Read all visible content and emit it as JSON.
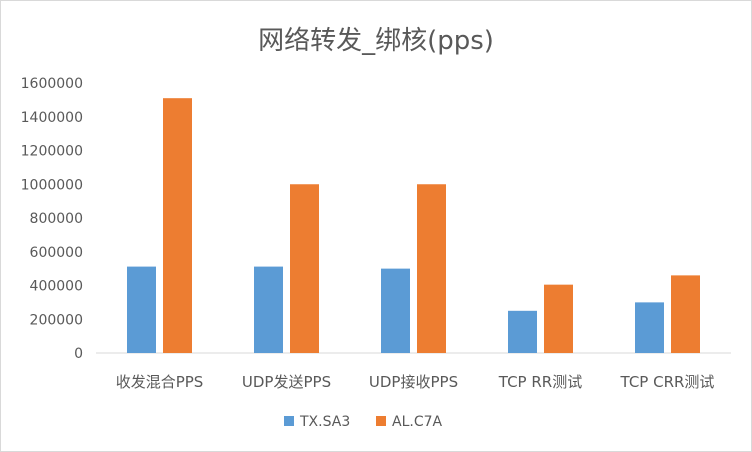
{
  "chart_data": {
    "type": "bar",
    "title": "网络转发_绑核(pps)",
    "xlabel": "",
    "ylabel": "",
    "categories": [
      "收发混合PPS",
      "UDP发送PPS",
      "UDP接收PPS",
      "TCP RR测试",
      "TCP CRR测试"
    ],
    "series": [
      {
        "name": "TX.SA3",
        "color": "#5b9bd5",
        "values": [
          512000,
          512000,
          500000,
          250000,
          300000
        ]
      },
      {
        "name": "AL.C7A",
        "color": "#ed7d31",
        "values": [
          1510000,
          1000000,
          1000000,
          405000,
          460000
        ]
      }
    ],
    "ylim": [
      0,
      1600000
    ],
    "yticks": [
      "0",
      "200000",
      "400000",
      "600000",
      "800000",
      "1000000",
      "1200000",
      "1400000",
      "1600000"
    ],
    "grid": false,
    "legend_position": "bottom"
  }
}
